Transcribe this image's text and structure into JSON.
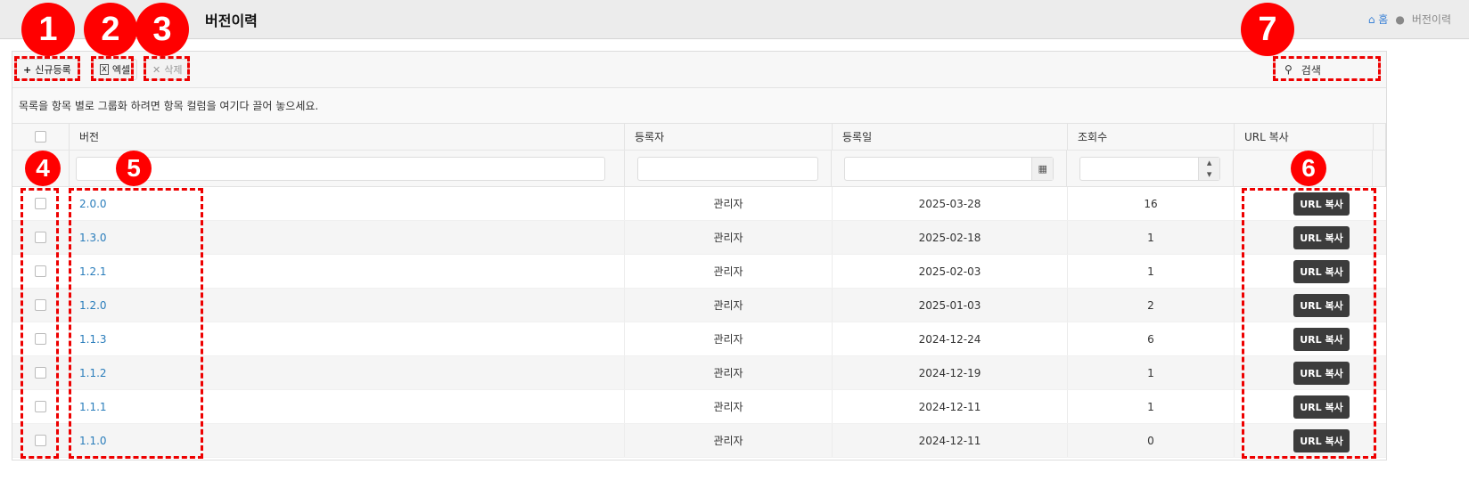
{
  "header": {
    "title": "버전이력",
    "breadcrumb": [
      "홈",
      "버전이력"
    ]
  },
  "toolbar": {
    "new_label": "신규등록",
    "excel_label": "엑셀",
    "delete_label": "삭제",
    "search_placeholder": "검색"
  },
  "group_hint": "목록을 항목 별로 그룹화 하려면 항목 컬럼을 여기다 끌어 놓으세요.",
  "columns": [
    "버전",
    "등록자",
    "등록일",
    "조회수",
    "URL 복사"
  ],
  "rows": [
    {
      "version": "2.0.0",
      "author": "관리자",
      "date": "2025-03-28",
      "views": "16",
      "action": "URL 복사"
    },
    {
      "version": "1.3.0",
      "author": "관리자",
      "date": "2025-02-18",
      "views": "1",
      "action": "URL 복사"
    },
    {
      "version": "1.2.1",
      "author": "관리자",
      "date": "2025-02-03",
      "views": "1",
      "action": "URL 복사"
    },
    {
      "version": "1.2.0",
      "author": "관리자",
      "date": "2025-01-03",
      "views": "2",
      "action": "URL 복사"
    },
    {
      "version": "1.1.3",
      "author": "관리자",
      "date": "2024-12-24",
      "views": "6",
      "action": "URL 복사"
    },
    {
      "version": "1.1.2",
      "author": "관리자",
      "date": "2024-12-19",
      "views": "1",
      "action": "URL 복사"
    },
    {
      "version": "1.1.1",
      "author": "관리자",
      "date": "2024-12-11",
      "views": "1",
      "action": "URL 복사"
    },
    {
      "version": "1.1.0",
      "author": "관리자",
      "date": "2024-12-11",
      "views": "0",
      "action": "URL 복사"
    }
  ],
  "annotations": [
    "1",
    "2",
    "3",
    "4",
    "5",
    "6",
    "7"
  ]
}
